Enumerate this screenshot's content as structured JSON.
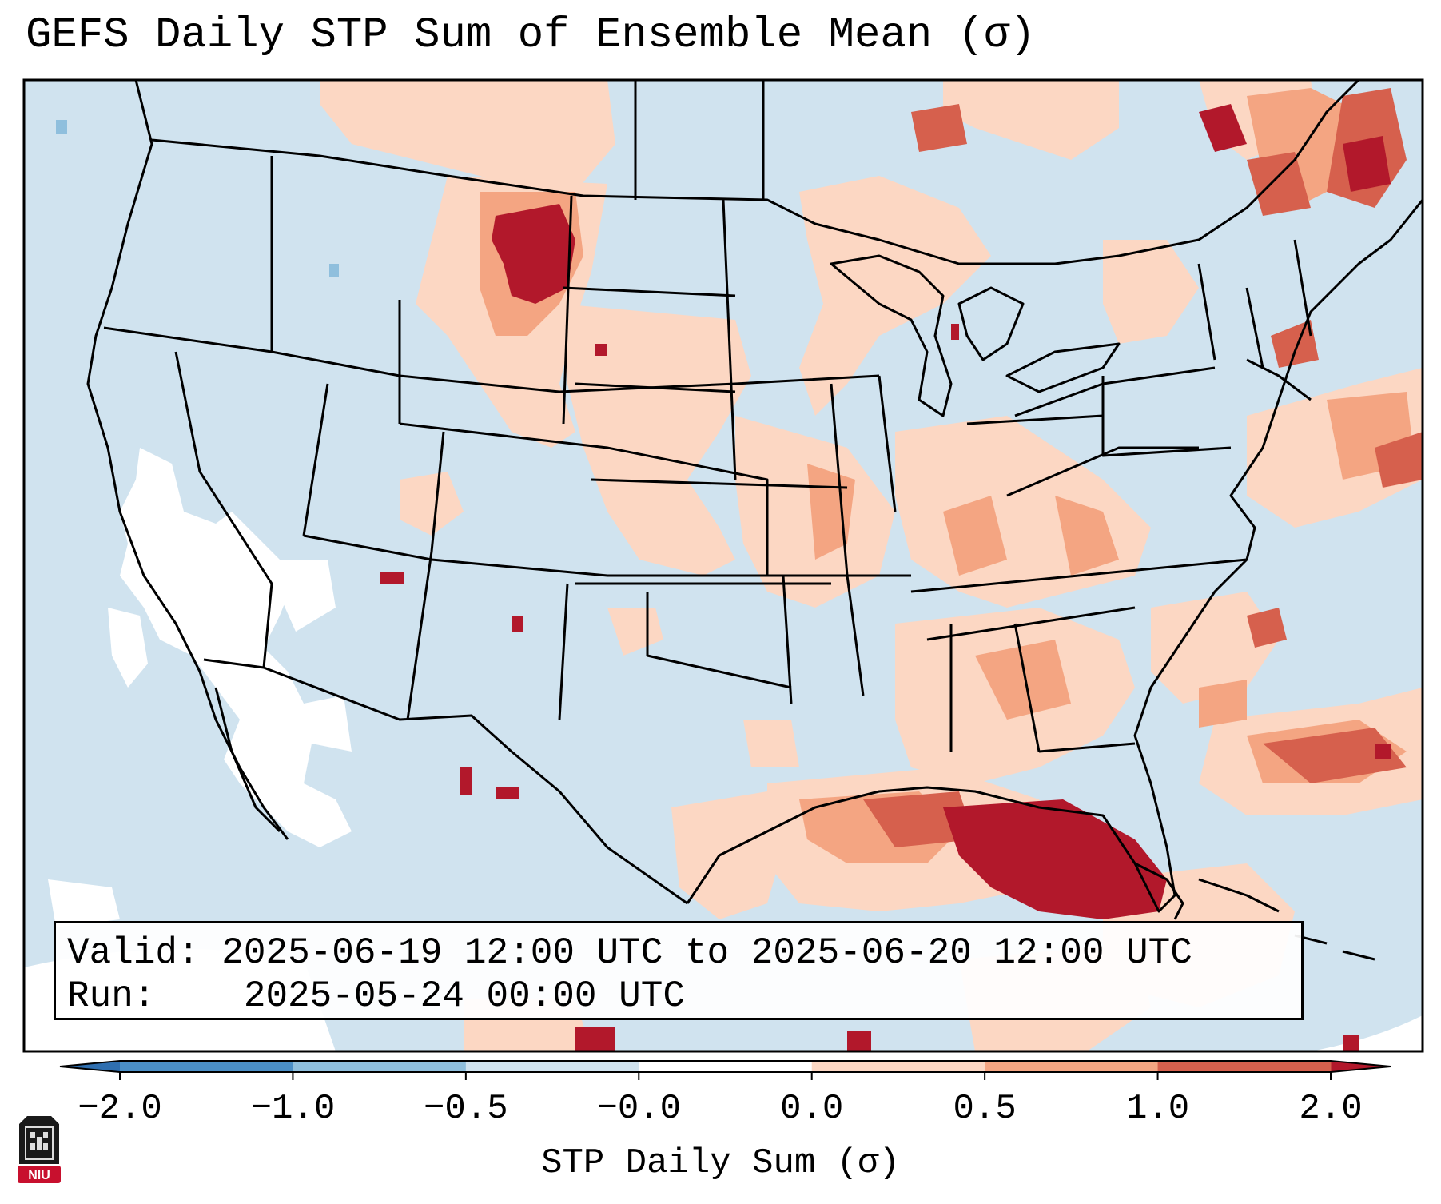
{
  "title": "GEFS Daily STP Sum of Ensemble Mean (σ)",
  "map": {
    "product": "STP daily sum, ensemble mean (sigma)",
    "background_color": "#d0e3ef",
    "fill_colors": {
      "below_minus_2": "#2f6fb0",
      "minus_2_to_minus_1": "#4b8fc6",
      "minus_1_to_minus_0.5": "#8fbfdd",
      "minus_0.5_to_0": "#d0e3ef",
      "zero_band": "#ffffff",
      "0_to_0.5": "#fcd7c3",
      "0.5_to_1": "#f4a582",
      "1_to_2": "#d6604d",
      "above_2": "#b2182b"
    },
    "highlight_regions": [
      {
        "name": "Montana / Alberta border",
        "level": "above_2"
      },
      {
        "name": "Florida / Gulf of Mexico",
        "level": "above_2"
      },
      {
        "name": "Quebec / New Brunswick",
        "level": "1_to_2"
      },
      {
        "name": "Western Atlantic",
        "level": "1_to_2"
      },
      {
        "name": "Southwest deserts",
        "level": "zero_band"
      }
    ]
  },
  "info": {
    "valid_label": "Valid:",
    "valid_text": "2025-06-19 12:00 UTC to 2025-06-20 12:00 UTC",
    "run_label": "Run:",
    "run_text": "2025-05-24 00:00 UTC"
  },
  "colorbar": {
    "label": "STP Daily Sum (σ)",
    "ticks": [
      "−2.0",
      "−1.0",
      "−0.5",
      "−0.0",
      "0.0",
      "0.5",
      "1.0",
      "2.0"
    ],
    "colors": [
      "#4b8fc6",
      "#8fbfdd",
      "#d0e3ef",
      "#ffffff",
      "#fcd7c3",
      "#f4a582",
      "#d6604d"
    ],
    "extend_low_color": "#2f6fb0",
    "extend_high_color": "#b2182b"
  },
  "logo": {
    "text": "NIU",
    "color": "#c8102e"
  }
}
